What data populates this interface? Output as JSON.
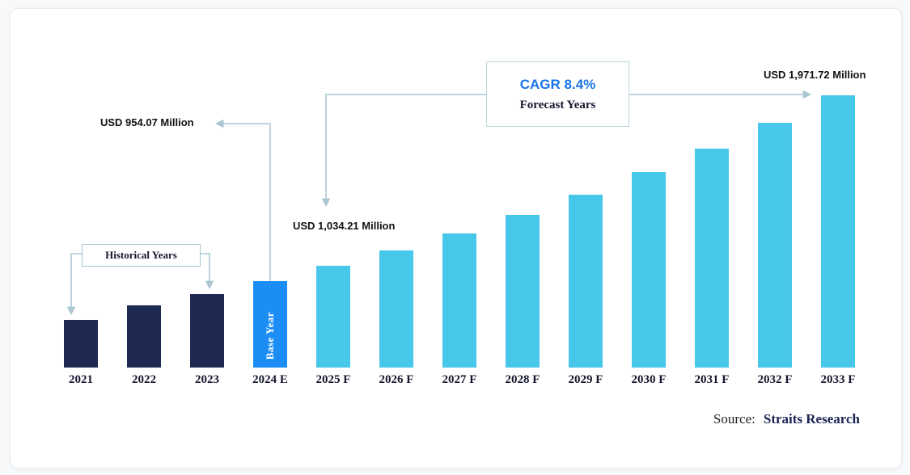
{
  "page": {
    "background": "#f7f9fb",
    "card_background": "#ffffff"
  },
  "chart_data": {
    "type": "bar",
    "title": "",
    "unit": "USD Million",
    "categories": [
      "2021",
      "2022",
      "2023",
      "2024 E",
      "2025 F",
      "2026 F",
      "2027 F",
      "2028 F",
      "2029 F",
      "2030 F",
      "2031 F",
      "2032 F",
      "2033 F"
    ],
    "values": [
      740,
      820,
      880,
      954.07,
      1034.21,
      1121.08,
      1215.25,
      1317.33,
      1427.99,
      1547.94,
      1677.97,
      1818.92,
      1971.72
    ],
    "roles": [
      "historical",
      "historical",
      "historical",
      "base",
      "forecast",
      "forecast",
      "forecast",
      "forecast",
      "forecast",
      "forecast",
      "forecast",
      "forecast",
      "forecast"
    ],
    "cagr_percent": 8.4,
    "legend": "none",
    "grid": false,
    "annotations": {
      "usd_954": "USD 954.07 Million",
      "usd_1034": "USD 1,034.21 Million",
      "usd_1971": "USD 1,971.72 Million",
      "cagr": "CAGR 8.4%",
      "forecast_years": "Forecast Years",
      "historical_years": "Historical Years",
      "base_year": "Base Year"
    },
    "colors": {
      "historical_bar": "#1f2a52",
      "base_year_bar": "#1b8df5",
      "forecast_bar": "#47c7ea",
      "cagr_text": "#1b74e8",
      "arrow_line": "#a9c6d2",
      "label_text": "#111111",
      "source_name_text": "#1a2352"
    }
  },
  "source": {
    "prefix": "Source:",
    "name": "Straits Research"
  }
}
